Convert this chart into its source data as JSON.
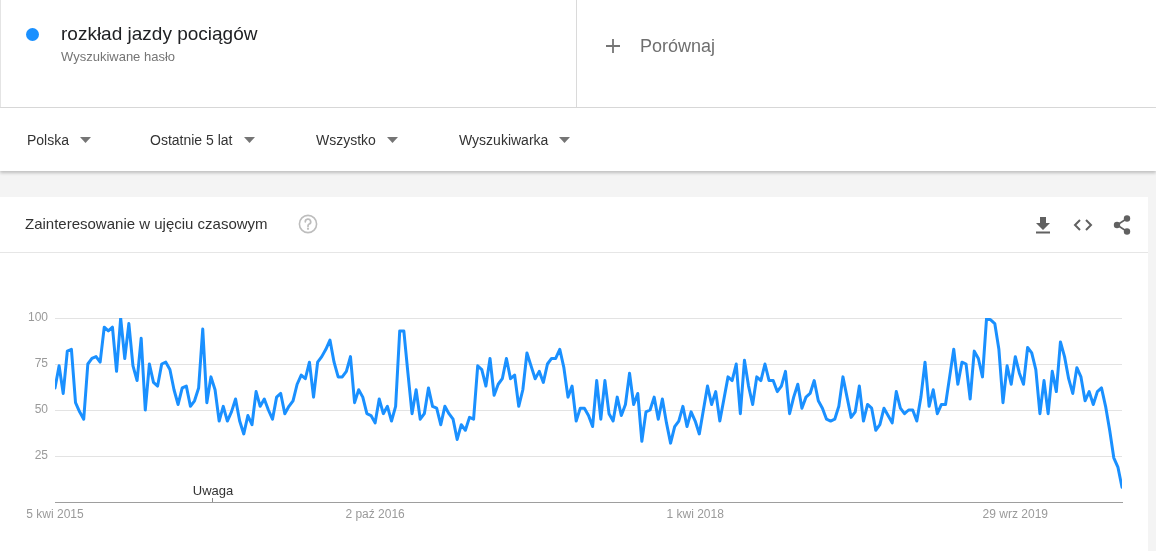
{
  "chart_data": {
    "type": "line",
    "title": "Zainteresowanie w ujęciu czasowym",
    "legend": "top left",
    "grid": "y",
    "annotations": [
      "Wyszukiwane hasło",
      "Porównaj",
      "Polska",
      "Ostatnie 5 lat",
      "Wszystko",
      "Wyszukiwarka",
      "Uwaga"
    ],
    "xlim": [
      "2015-04-05",
      "2020-03-29"
    ],
    "xticks": [
      {
        "value": "2015-04-05",
        "label": "5 kwi 2015"
      },
      {
        "value": "2016-10-02",
        "label": "2 paź 2016"
      },
      {
        "value": "2018-04-01",
        "label": "1 kwi 2018"
      },
      {
        "value": "2019-09-29",
        "label": "29 wrz 2019"
      }
    ],
    "ylim": [
      0,
      100
    ],
    "yticks": [
      25,
      50,
      75,
      100
    ],
    "x": [
      "2015-04-05",
      "2015-04-12",
      "2015-04-19",
      "2015-04-26",
      "2015-05-03",
      "2015-05-10",
      "2015-05-17",
      "2015-05-24",
      "2015-05-31",
      "2015-06-07",
      "2015-06-14",
      "2015-06-21",
      "2015-06-28",
      "2015-07-05",
      "2015-07-12",
      "2015-07-19",
      "2015-07-26",
      "2015-08-02",
      "2015-08-09",
      "2015-08-16",
      "2015-08-23",
      "2015-08-30",
      "2015-09-06",
      "2015-09-13",
      "2015-09-20",
      "2015-09-27",
      "2015-10-04",
      "2015-10-11",
      "2015-10-18",
      "2015-10-25",
      "2015-11-01",
      "2015-11-08",
      "2015-11-15",
      "2015-11-22",
      "2015-11-29",
      "2015-12-06",
      "2015-12-13",
      "2015-12-20",
      "2015-12-27",
      "2016-01-03",
      "2016-01-10",
      "2016-01-17",
      "2016-01-24",
      "2016-01-31",
      "2016-02-07",
      "2016-02-14",
      "2016-02-21",
      "2016-02-28",
      "2016-03-06",
      "2016-03-13",
      "2016-03-20",
      "2016-03-27",
      "2016-04-03",
      "2016-04-10",
      "2016-04-17",
      "2016-04-24",
      "2016-05-01",
      "2016-05-08",
      "2016-05-15",
      "2016-05-22",
      "2016-05-29",
      "2016-06-05",
      "2016-06-12",
      "2016-06-19",
      "2016-06-26",
      "2016-07-03",
      "2016-07-10",
      "2016-07-17",
      "2016-07-24",
      "2016-07-31",
      "2016-08-07",
      "2016-08-14",
      "2016-08-21",
      "2016-08-28",
      "2016-09-04",
      "2016-09-11",
      "2016-09-18",
      "2016-09-25",
      "2016-10-02",
      "2016-10-09",
      "2016-10-16",
      "2016-10-23",
      "2016-10-30",
      "2016-11-06",
      "2016-11-13",
      "2016-11-20",
      "2016-11-27",
      "2016-12-04",
      "2016-12-11",
      "2016-12-18",
      "2016-12-25",
      "2017-01-01",
      "2017-01-08",
      "2017-01-15",
      "2017-01-22",
      "2017-01-29",
      "2017-02-05",
      "2017-02-12",
      "2017-02-19",
      "2017-02-26",
      "2017-03-05",
      "2017-03-12",
      "2017-03-19",
      "2017-03-26",
      "2017-04-02",
      "2017-04-09",
      "2017-04-16",
      "2017-04-23",
      "2017-04-30",
      "2017-05-07",
      "2017-05-14",
      "2017-05-21",
      "2017-05-28",
      "2017-06-04",
      "2017-06-11",
      "2017-06-18",
      "2017-06-25",
      "2017-07-02",
      "2017-07-09",
      "2017-07-16",
      "2017-07-23",
      "2017-07-30",
      "2017-08-06",
      "2017-08-13",
      "2017-08-20",
      "2017-08-27",
      "2017-09-03",
      "2017-09-10",
      "2017-09-17",
      "2017-09-24",
      "2017-10-01",
      "2017-10-08",
      "2017-10-15",
      "2017-10-22",
      "2017-10-29",
      "2017-11-05",
      "2017-11-12",
      "2017-11-19",
      "2017-11-26",
      "2017-12-03",
      "2017-12-10",
      "2017-12-17",
      "2017-12-24",
      "2017-12-31",
      "2018-01-07",
      "2018-01-14",
      "2018-01-21",
      "2018-01-28",
      "2018-02-04",
      "2018-02-11",
      "2018-02-18",
      "2018-02-25",
      "2018-03-04",
      "2018-03-11",
      "2018-03-18",
      "2018-03-25",
      "2018-04-01",
      "2018-04-08",
      "2018-04-15",
      "2018-04-22",
      "2018-04-29",
      "2018-05-06",
      "2018-05-13",
      "2018-05-20",
      "2018-05-27",
      "2018-06-03",
      "2018-06-10",
      "2018-06-17",
      "2018-06-24",
      "2018-07-01",
      "2018-07-08",
      "2018-07-15",
      "2018-07-22",
      "2018-07-29",
      "2018-08-05",
      "2018-08-12",
      "2018-08-19",
      "2018-08-26",
      "2018-09-02",
      "2018-09-09",
      "2018-09-16",
      "2018-09-23",
      "2018-09-30",
      "2018-10-07",
      "2018-10-14",
      "2018-10-21",
      "2018-10-28",
      "2018-11-04",
      "2018-11-11",
      "2018-11-18",
      "2018-11-25",
      "2018-12-02",
      "2018-12-09",
      "2018-12-16",
      "2018-12-23",
      "2018-12-30",
      "2019-01-06",
      "2019-01-13",
      "2019-01-20",
      "2019-01-27",
      "2019-02-03",
      "2019-02-10",
      "2019-02-17",
      "2019-02-24",
      "2019-03-03",
      "2019-03-10",
      "2019-03-17",
      "2019-03-24",
      "2019-03-31",
      "2019-04-07",
      "2019-04-14",
      "2019-04-21",
      "2019-04-28",
      "2019-05-05",
      "2019-05-12",
      "2019-05-19",
      "2019-05-26",
      "2019-06-02",
      "2019-06-09",
      "2019-06-16",
      "2019-06-23",
      "2019-06-30",
      "2019-07-07",
      "2019-07-14",
      "2019-07-21",
      "2019-07-28",
      "2019-08-04",
      "2019-08-11",
      "2019-08-18",
      "2019-08-25",
      "2019-09-01",
      "2019-09-08",
      "2019-09-15",
      "2019-09-22",
      "2019-09-29",
      "2019-10-06",
      "2019-10-13",
      "2019-10-20",
      "2019-10-27",
      "2019-11-03",
      "2019-11-10",
      "2019-11-17",
      "2019-11-24",
      "2019-12-01",
      "2019-12-08",
      "2019-12-15",
      "2019-12-22",
      "2019-12-29",
      "2020-01-05",
      "2020-01-12",
      "2020-01-19",
      "2020-01-26",
      "2020-02-02",
      "2020-02-09",
      "2020-02-16",
      "2020-02-23",
      "2020-03-01",
      "2020-03-08",
      "2020-03-15",
      "2020-03-22",
      "2020-03-29"
    ],
    "series": [
      {
        "name": "rozkład jazdy pociągów",
        "color": "#1a90ff",
        "values": [
          62,
          74,
          59,
          82,
          83,
          54,
          49,
          45,
          75,
          78,
          79,
          76,
          95,
          93,
          95,
          71,
          100,
          78,
          97,
          74,
          66,
          89,
          50,
          75,
          65,
          63,
          75,
          76,
          72,
          61,
          53,
          62,
          63,
          52,
          55,
          62,
          94,
          54,
          68,
          61,
          44,
          52,
          44,
          49,
          56,
          44,
          37,
          47,
          42,
          60,
          52,
          56,
          50,
          45,
          57,
          59,
          48,
          52,
          55,
          64,
          69,
          67,
          76,
          57,
          76,
          79,
          83,
          88,
          76,
          68,
          68,
          71,
          79,
          54,
          61,
          57,
          48,
          47,
          43,
          56,
          48,
          52,
          44,
          52,
          93,
          93,
          70,
          48,
          61,
          45,
          48,
          62,
          52,
          51,
          42,
          52,
          48,
          45,
          34,
          42,
          39,
          46,
          45,
          74,
          72,
          63,
          78,
          58,
          64,
          67,
          78,
          67,
          69,
          52,
          61,
          81,
          74,
          67,
          71,
          65,
          75,
          78,
          78,
          83,
          73,
          57,
          63,
          44,
          51,
          51,
          47,
          41,
          66,
          45,
          66,
          48,
          44,
          57,
          47,
          53,
          70,
          53,
          59,
          33,
          49,
          50,
          57,
          45,
          56,
          43,
          32,
          41,
          44,
          52,
          41,
          49,
          44,
          37,
          50,
          63,
          53,
          60,
          44,
          56,
          68,
          66,
          75,
          48,
          77,
          63,
          53,
          68,
          66,
          75,
          66,
          66,
          60,
          63,
          71,
          48,
          57,
          64,
          51,
          57,
          59,
          66,
          55,
          51,
          45,
          44,
          45,
          52,
          68,
          57,
          46,
          49,
          63,
          44,
          53,
          51,
          39,
          42,
          51,
          47,
          43,
          60,
          51,
          48,
          50,
          50,
          44,
          57,
          76,
          52,
          61,
          48,
          53,
          53,
          68,
          83,
          64,
          76,
          75,
          56,
          82,
          78,
          68,
          100,
          99,
          97,
          83,
          54,
          74,
          64,
          79,
          70,
          64,
          84,
          81,
          72,
          48,
          66,
          48,
          71,
          60,
          87,
          79,
          67,
          59,
          73,
          68,
          55,
          60,
          53,
          60,
          62,
          52,
          39,
          24,
          19,
          8
        ]
      }
    ]
  }
}
